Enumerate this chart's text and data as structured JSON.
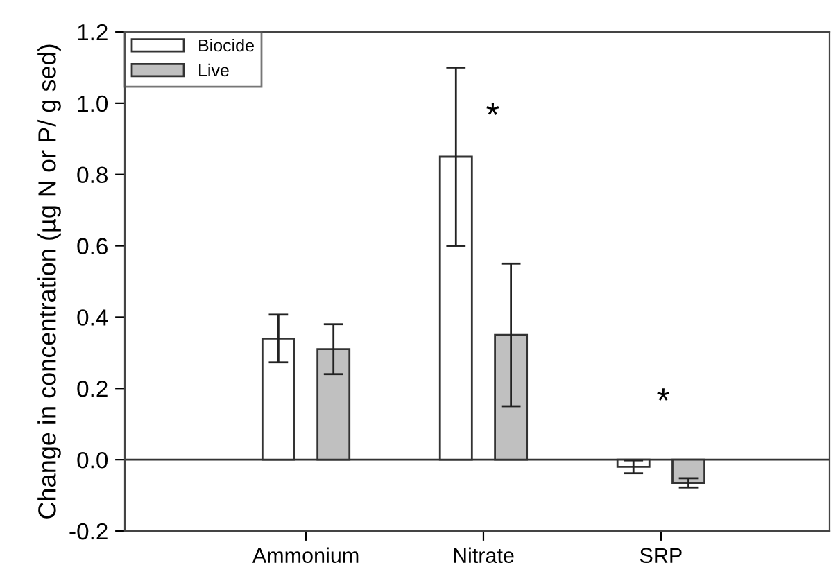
{
  "chart_data": {
    "type": "bar",
    "ylabel": "Change in concentration (µg N or P/ g sed)",
    "categories": [
      "Ammonium",
      "Nitrate",
      "SRP"
    ],
    "series": [
      {
        "name": "Biocide",
        "color": "#ffffff",
        "values": [
          0.34,
          0.85,
          -0.02
        ],
        "errors": [
          0.067,
          0.25,
          0.018
        ]
      },
      {
        "name": "Live",
        "color": "#c0c0c0",
        "values": [
          0.31,
          0.35,
          -0.065
        ],
        "errors": [
          0.07,
          0.2,
          0.013
        ]
      }
    ],
    "ylim": [
      -0.2,
      1.2
    ],
    "yticks": [
      {
        "value": -0.2,
        "label": "-0.2"
      },
      {
        "value": 0,
        "label": "0.0"
      },
      {
        "value": 0.2,
        "label": "0.2"
      },
      {
        "value": 0.4,
        "label": "0.4"
      },
      {
        "value": 0.6,
        "label": "0.6"
      },
      {
        "value": 0.8,
        "label": "0.8"
      },
      {
        "value": 1.0,
        "label": "1.0"
      },
      {
        "value": 1.2,
        "label": "1.2"
      }
    ],
    "ref_lines": [
      {
        "axis": "y",
        "value": 0,
        "color": "#333333"
      }
    ],
    "annotations": [
      "*",
      "*"
    ],
    "grid": false,
    "legend": "top left"
  }
}
